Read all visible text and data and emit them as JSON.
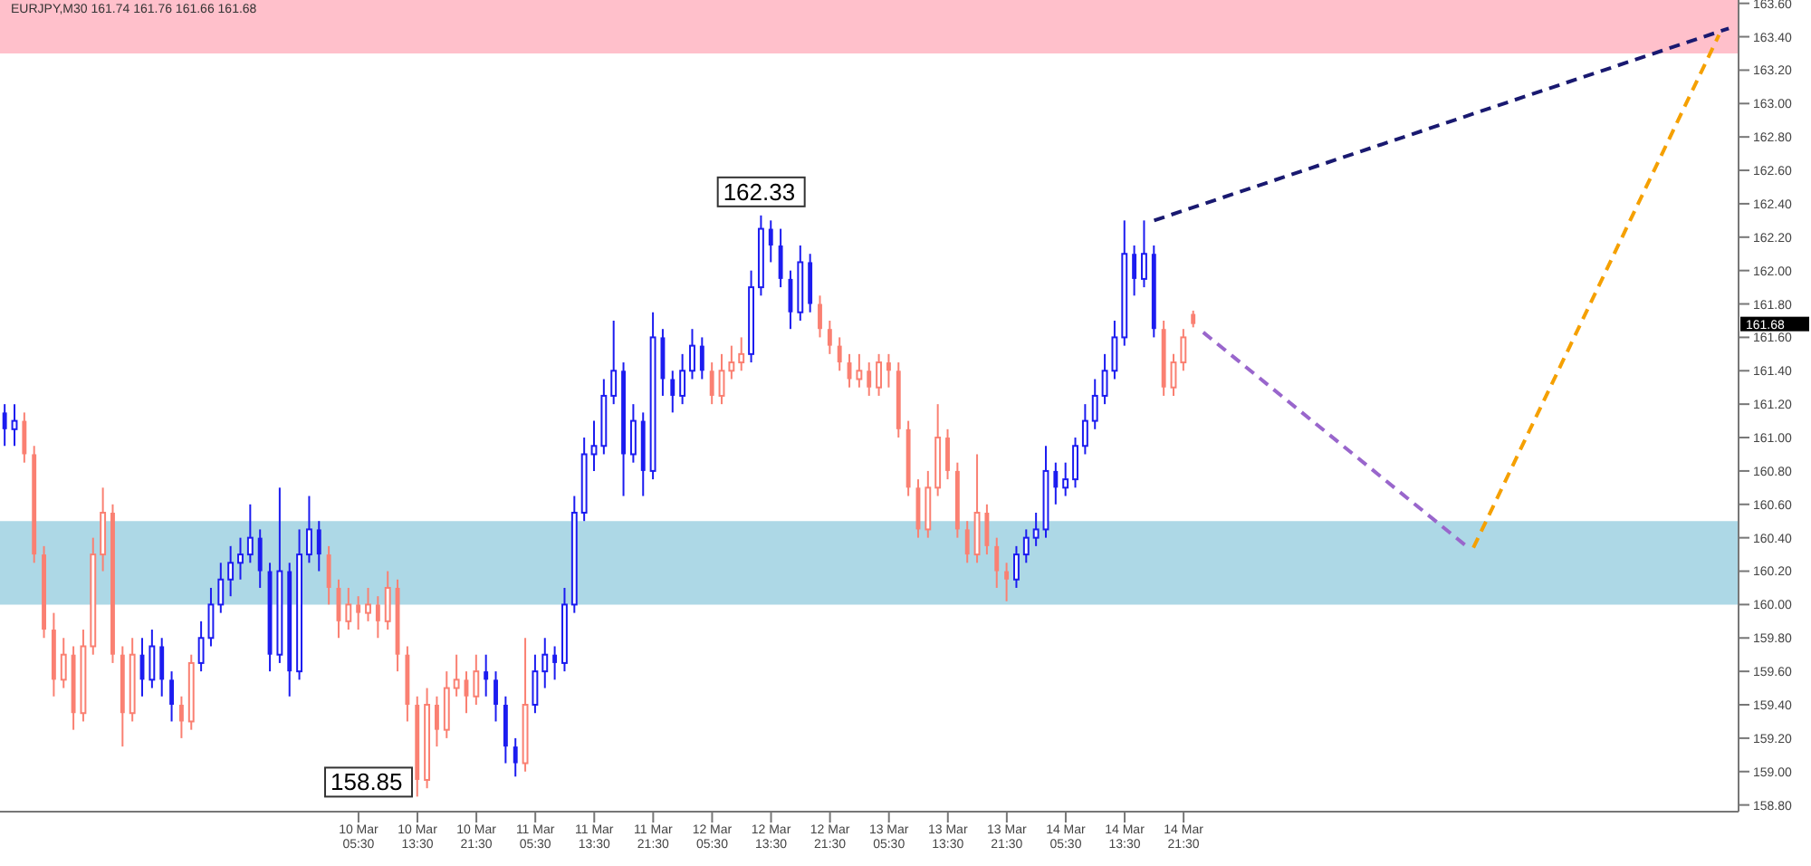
{
  "chart_data": {
    "type": "candlestick",
    "title": "EURJPY,M30 161.74 161.76 161.66 161.68",
    "x": [
      "--03-08T05:30",
      "--03-08T06:50",
      "--03-08T08:10",
      "--03-08T09:30",
      "--03-08T10:50",
      "--03-08T12:10",
      "--03-08T13:30",
      "--03-08T14:50",
      "--03-08T16:10",
      "--03-08T17:30",
      "--03-08T18:50",
      "--03-08T20:10",
      "--03-08T21:30",
      "--03-08T22:50",
      "--03-09T00:10",
      "--03-09T01:30",
      "--03-09T02:50",
      "--03-09T04:10",
      "--03-09T05:30",
      "--03-09T06:50",
      "--03-09T08:10",
      "--03-09T09:30",
      "--03-09T10:50",
      "--03-09T12:10",
      "--03-09T13:30",
      "--03-09T14:50",
      "--03-09T16:10",
      "--03-09T17:30",
      "--03-09T18:50",
      "--03-09T20:10",
      "--03-09T21:30",
      "--03-09T22:50",
      "--03-10T00:10",
      "--03-10T01:30",
      "--03-10T02:50",
      "--03-10T04:10",
      "--03-10T05:30",
      "--03-10T06:50",
      "--03-10T08:10",
      "--03-10T09:30",
      "--03-10T10:50",
      "--03-10T12:10",
      "--03-10T13:30",
      "--03-10T14:50",
      "--03-10T16:10",
      "--03-10T17:30",
      "--03-10T18:50",
      "--03-10T20:10",
      "--03-10T21:30",
      "--03-10T22:50",
      "--03-11T00:10",
      "--03-11T01:30",
      "--03-11T02:50",
      "--03-11T04:10",
      "--03-11T05:30",
      "--03-11T06:50",
      "--03-11T08:10",
      "--03-11T09:30",
      "--03-11T10:50",
      "--03-11T12:10",
      "--03-11T13:30",
      "--03-11T14:50",
      "--03-11T16:10",
      "--03-11T17:30",
      "--03-11T18:50",
      "--03-11T20:10",
      "--03-11T21:30",
      "--03-11T22:50",
      "--03-12T00:10",
      "--03-12T01:30",
      "--03-12T02:50",
      "--03-12T04:10",
      "--03-12T05:30",
      "--03-12T06:50",
      "--03-12T08:10",
      "--03-12T09:30",
      "--03-12T10:50",
      "--03-12T12:10",
      "--03-12T13:30",
      "--03-12T14:50",
      "--03-12T16:10",
      "--03-12T17:30",
      "--03-12T18:50",
      "--03-12T20:10",
      "--03-12T21:30",
      "--03-12T22:50",
      "--03-13T00:10",
      "--03-13T01:30",
      "--03-13T02:50",
      "--03-13T04:10",
      "--03-13T05:30",
      "--03-13T06:50",
      "--03-13T08:10",
      "--03-13T09:30",
      "--03-13T10:50",
      "--03-13T12:10",
      "--03-13T13:30",
      "--03-13T14:50",
      "--03-13T16:10",
      "--03-13T17:30",
      "--03-13T18:50",
      "--03-13T20:10",
      "--03-13T21:30",
      "--03-13T22:50",
      "--03-14T00:10",
      "--03-14T01:30",
      "--03-14T02:50",
      "--03-14T04:10",
      "--03-14T05:30",
      "--03-14T06:50",
      "--03-14T08:10",
      "--03-14T09:30",
      "--03-14T10:50",
      "--03-14T12:10",
      "--03-14T13:30",
      "--03-14T14:50",
      "--03-14T16:10",
      "--03-14T17:30",
      "--03-14T18:50",
      "--03-14T20:10",
      "--03-14T21:30",
      "--03-14T22:50"
    ],
    "ohlc": [
      [
        161.15,
        161.2,
        160.95,
        161.05
      ],
      [
        161.05,
        161.2,
        160.95,
        161.1
      ],
      [
        161.1,
        161.15,
        160.85,
        160.9
      ],
      [
        160.9,
        160.95,
        160.25,
        160.3
      ],
      [
        160.3,
        160.35,
        159.8,
        159.85
      ],
      [
        159.85,
        159.95,
        159.45,
        159.55
      ],
      [
        159.55,
        159.8,
        159.5,
        159.7
      ],
      [
        159.7,
        159.75,
        159.25,
        159.35
      ],
      [
        159.35,
        159.85,
        159.3,
        159.75
      ],
      [
        159.75,
        160.4,
        159.7,
        160.3
      ],
      [
        160.3,
        160.7,
        160.2,
        160.55
      ],
      [
        160.55,
        160.6,
        159.65,
        159.7
      ],
      [
        159.7,
        159.75,
        159.15,
        159.35
      ],
      [
        159.35,
        159.8,
        159.3,
        159.7
      ],
      [
        159.7,
        159.8,
        159.45,
        159.55
      ],
      [
        159.55,
        159.85,
        159.5,
        159.75
      ],
      [
        159.75,
        159.8,
        159.45,
        159.55
      ],
      [
        159.55,
        159.6,
        159.3,
        159.4
      ],
      [
        159.4,
        159.45,
        159.2,
        159.3
      ],
      [
        159.3,
        159.7,
        159.25,
        159.65
      ],
      [
        159.65,
        159.9,
        159.6,
        159.8
      ],
      [
        159.8,
        160.1,
        159.75,
        160.0
      ],
      [
        160.0,
        160.25,
        159.95,
        160.15
      ],
      [
        160.15,
        160.35,
        160.05,
        160.25
      ],
      [
        160.25,
        160.4,
        160.15,
        160.3
      ],
      [
        160.3,
        160.6,
        160.25,
        160.4
      ],
      [
        160.4,
        160.45,
        160.1,
        160.2
      ],
      [
        160.2,
        160.25,
        159.6,
        159.7
      ],
      [
        159.7,
        160.7,
        159.65,
        160.2
      ],
      [
        160.2,
        160.25,
        159.45,
        159.6
      ],
      [
        159.6,
        160.45,
        159.55,
        160.3
      ],
      [
        160.3,
        160.65,
        160.25,
        160.45
      ],
      [
        160.45,
        160.5,
        160.2,
        160.3
      ],
      [
        160.3,
        160.35,
        160.0,
        160.1
      ],
      [
        160.1,
        160.15,
        159.8,
        159.9
      ],
      [
        159.9,
        160.1,
        159.85,
        160.0
      ],
      [
        160.0,
        160.05,
        159.85,
        159.95
      ],
      [
        159.95,
        160.1,
        159.9,
        160.0
      ],
      [
        160.0,
        160.05,
        159.8,
        159.9
      ],
      [
        159.9,
        160.2,
        159.85,
        160.1
      ],
      [
        160.1,
        160.15,
        159.6,
        159.7
      ],
      [
        159.7,
        159.75,
        159.3,
        159.4
      ],
      [
        159.4,
        159.45,
        158.85,
        158.95
      ],
      [
        158.95,
        159.5,
        158.9,
        159.4
      ],
      [
        159.4,
        159.45,
        159.15,
        159.25
      ],
      [
        159.25,
        159.6,
        159.2,
        159.5
      ],
      [
        159.5,
        159.7,
        159.45,
        159.55
      ],
      [
        159.55,
        159.6,
        159.35,
        159.45
      ],
      [
        159.45,
        159.7,
        159.4,
        159.6
      ],
      [
        159.6,
        159.7,
        159.45,
        159.55
      ],
      [
        159.55,
        159.6,
        159.3,
        159.4
      ],
      [
        159.4,
        159.45,
        159.05,
        159.15
      ],
      [
        159.15,
        159.2,
        158.97,
        159.05
      ],
      [
        159.05,
        159.8,
        159.0,
        159.4
      ],
      [
        159.4,
        159.7,
        159.35,
        159.6
      ],
      [
        159.6,
        159.8,
        159.5,
        159.7
      ],
      [
        159.7,
        159.75,
        159.55,
        159.65
      ],
      [
        159.65,
        160.1,
        159.6,
        160.0
      ],
      [
        160.0,
        160.65,
        159.95,
        160.55
      ],
      [
        160.55,
        161.0,
        160.5,
        160.9
      ],
      [
        160.9,
        161.1,
        160.8,
        160.95
      ],
      [
        160.95,
        161.35,
        160.9,
        161.25
      ],
      [
        161.25,
        161.7,
        161.2,
        161.4
      ],
      [
        161.4,
        161.45,
        160.65,
        160.9
      ],
      [
        160.9,
        161.2,
        160.85,
        161.1
      ],
      [
        161.1,
        161.15,
        160.65,
        160.8
      ],
      [
        160.8,
        161.75,
        160.75,
        161.6
      ],
      [
        161.6,
        161.65,
        161.25,
        161.35
      ],
      [
        161.35,
        161.4,
        161.15,
        161.25
      ],
      [
        161.25,
        161.5,
        161.2,
        161.4
      ],
      [
        161.4,
        161.65,
        161.35,
        161.55
      ],
      [
        161.55,
        161.6,
        161.35,
        161.4
      ],
      [
        161.4,
        161.45,
        161.2,
        161.25
      ],
      [
        161.25,
        161.5,
        161.2,
        161.4
      ],
      [
        161.4,
        161.55,
        161.35,
        161.45
      ],
      [
        161.45,
        161.6,
        161.4,
        161.5
      ],
      [
        161.5,
        162.0,
        161.45,
        161.9
      ],
      [
        161.9,
        162.33,
        161.85,
        162.25
      ],
      [
        162.25,
        162.3,
        162.05,
        162.15
      ],
      [
        162.15,
        162.25,
        161.9,
        161.95
      ],
      [
        161.95,
        162.0,
        161.65,
        161.75
      ],
      [
        161.75,
        162.15,
        161.7,
        162.05
      ],
      [
        162.05,
        162.1,
        161.75,
        161.8
      ],
      [
        161.8,
        161.85,
        161.6,
        161.65
      ],
      [
        161.65,
        161.7,
        161.5,
        161.55
      ],
      [
        161.55,
        161.6,
        161.4,
        161.45
      ],
      [
        161.45,
        161.5,
        161.3,
        161.35
      ],
      [
        161.35,
        161.5,
        161.3,
        161.4
      ],
      [
        161.4,
        161.45,
        161.25,
        161.3
      ],
      [
        161.3,
        161.5,
        161.25,
        161.45
      ],
      [
        161.45,
        161.5,
        161.3,
        161.4
      ],
      [
        161.4,
        161.45,
        161.0,
        161.05
      ],
      [
        161.05,
        161.1,
        160.65,
        160.7
      ],
      [
        160.7,
        160.75,
        160.4,
        160.45
      ],
      [
        160.45,
        160.8,
        160.4,
        160.7
      ],
      [
        160.7,
        161.2,
        160.65,
        161.0
      ],
      [
        161.0,
        161.05,
        160.75,
        160.8
      ],
      [
        160.8,
        160.85,
        160.4,
        160.45
      ],
      [
        160.45,
        160.5,
        160.25,
        160.3
      ],
      [
        160.3,
        160.9,
        160.25,
        160.55
      ],
      [
        160.55,
        160.6,
        160.3,
        160.35
      ],
      [
        160.35,
        160.4,
        160.1,
        160.2
      ],
      [
        160.2,
        160.25,
        160.02,
        160.15
      ],
      [
        160.15,
        160.35,
        160.1,
        160.3
      ],
      [
        160.3,
        160.45,
        160.25,
        160.4
      ],
      [
        160.4,
        160.55,
        160.35,
        160.45
      ],
      [
        160.45,
        160.95,
        160.4,
        160.8
      ],
      [
        160.8,
        160.85,
        160.6,
        160.7
      ],
      [
        160.7,
        160.85,
        160.65,
        160.75
      ],
      [
        160.75,
        161.0,
        160.7,
        160.95
      ],
      [
        160.95,
        161.2,
        160.9,
        161.1
      ],
      [
        161.1,
        161.35,
        161.05,
        161.25
      ],
      [
        161.25,
        161.5,
        161.2,
        161.4
      ],
      [
        161.4,
        161.7,
        161.35,
        161.6
      ],
      [
        161.6,
        162.3,
        161.55,
        162.1
      ],
      [
        162.1,
        162.15,
        161.85,
        161.95
      ],
      [
        161.95,
        162.3,
        161.9,
        162.1
      ],
      [
        162.1,
        162.15,
        161.6,
        161.65
      ],
      [
        161.65,
        161.7,
        161.25,
        161.3
      ],
      [
        161.3,
        161.5,
        161.25,
        161.45
      ],
      [
        161.45,
        161.65,
        161.4,
        161.6
      ],
      [
        161.74,
        161.76,
        161.66,
        161.68
      ]
    ],
    "colors": [
      "#1c1cf0",
      "#1c1cf0",
      "#fa8072",
      "#fa8072",
      "#fa8072",
      "#fa8072",
      "#fa8072",
      "#fa8072",
      "#fa8072",
      "#fa8072",
      "#fa8072",
      "#fa8072",
      "#fa8072",
      "#fa8072",
      "#1c1cf0",
      "#1c1cf0",
      "#1c1cf0",
      "#1c1cf0",
      "#fa8072",
      "#fa8072",
      "#1c1cf0",
      "#1c1cf0",
      "#1c1cf0",
      "#1c1cf0",
      "#1c1cf0",
      "#1c1cf0",
      "#1c1cf0",
      "#1c1cf0",
      "#1c1cf0",
      "#1c1cf0",
      "#1c1cf0",
      "#1c1cf0",
      "#1c1cf0",
      "#fa8072",
      "#fa8072",
      "#fa8072",
      "#fa8072",
      "#fa8072",
      "#fa8072",
      "#fa8072",
      "#fa8072",
      "#fa8072",
      "#fa8072",
      "#fa8072",
      "#fa8072",
      "#fa8072",
      "#fa8072",
      "#fa8072",
      "#fa8072",
      "#1c1cf0",
      "#1c1cf0",
      "#1c1cf0",
      "#1c1cf0",
      "#fa8072",
      "#1c1cf0",
      "#1c1cf0",
      "#1c1cf0",
      "#1c1cf0",
      "#1c1cf0",
      "#1c1cf0",
      "#1c1cf0",
      "#1c1cf0",
      "#1c1cf0",
      "#1c1cf0",
      "#1c1cf0",
      "#1c1cf0",
      "#1c1cf0",
      "#1c1cf0",
      "#1c1cf0",
      "#1c1cf0",
      "#1c1cf0",
      "#1c1cf0",
      "#fa8072",
      "#fa8072",
      "#fa8072",
      "#fa8072",
      "#1c1cf0",
      "#1c1cf0",
      "#1c1cf0",
      "#1c1cf0",
      "#1c1cf0",
      "#1c1cf0",
      "#1c1cf0",
      "#fa8072",
      "#fa8072",
      "#fa8072",
      "#fa8072",
      "#fa8072",
      "#fa8072",
      "#fa8072",
      "#fa8072",
      "#fa8072",
      "#fa8072",
      "#fa8072",
      "#fa8072",
      "#fa8072",
      "#fa8072",
      "#fa8072",
      "#fa8072",
      "#fa8072",
      "#fa8072",
      "#fa8072",
      "#fa8072",
      "#1c1cf0",
      "#1c1cf0",
      "#1c1cf0",
      "#1c1cf0",
      "#1c1cf0",
      "#1c1cf0",
      "#1c1cf0",
      "#1c1cf0",
      "#1c1cf0",
      "#1c1cf0",
      "#1c1cf0",
      "#1c1cf0",
      "#1c1cf0",
      "#1c1cf0",
      "#1c1cf0",
      "#fa8072",
      "#fa8072",
      "#fa8072",
      "#fa8072"
    ],
    "series": [
      {
        "type": "line",
        "color": "#191970",
        "line_style": "dashed",
        "x": [
          "--03-14T17:30",
          "--03-17T23:30"
        ],
        "values": [
          162.3,
          163.45
        ]
      },
      {
        "type": "line",
        "color": "#9966cc",
        "line_style": "dashed",
        "x": [
          "--03-15T00:10",
          "--03-16T12:10"
        ],
        "values": [
          161.63,
          160.34
        ]
      },
      {
        "type": "line",
        "color": "#f5a000",
        "line_style": "dashed",
        "x": [
          "--03-16T12:50",
          "--03-17T22:10"
        ],
        "values": [
          160.34,
          163.41
        ]
      }
    ],
    "xlim": [
      "--03-08T04:50",
      "--03-18T00:50"
    ],
    "xticks": [
      {
        "value": "--03-10T05:30",
        "label": "10 Mar 05:30"
      },
      {
        "value": "--03-10T13:30",
        "label": "10 Mar 13:30"
      },
      {
        "value": "--03-10T21:30",
        "label": "10 Mar 21:30"
      },
      {
        "value": "--03-11T05:30",
        "label": "11 Mar 05:30"
      },
      {
        "value": "--03-11T13:30",
        "label": "11 Mar 13:30"
      },
      {
        "value": "--03-11T21:30",
        "label": "11 Mar 21:30"
      },
      {
        "value": "--03-12T05:30",
        "label": "12 Mar 05:30"
      },
      {
        "value": "--03-12T13:30",
        "label": "12 Mar 13:30"
      },
      {
        "value": "--03-12T21:30",
        "label": "12 Mar 21:30"
      },
      {
        "value": "--03-13T05:30",
        "label": "13 Mar 05:30"
      },
      {
        "value": "--03-13T13:30",
        "label": "13 Mar 13:30"
      },
      {
        "value": "--03-13T21:30",
        "label": "13 Mar 21:30"
      },
      {
        "value": "--03-14T05:30",
        "label": "14 Mar 05:30"
      },
      {
        "value": "--03-14T13:30",
        "label": "14 Mar 13:30"
      },
      {
        "value": "--03-14T21:30",
        "label": "14 Mar 21:30"
      }
    ],
    "ylim": [
      158.76,
      163.62
    ],
    "yticks": [
      {
        "value": 158.8,
        "label": "158.80"
      },
      {
        "value": 159,
        "label": "159.00"
      },
      {
        "value": 159.2,
        "label": "159.20"
      },
      {
        "value": 159.4,
        "label": "159.40"
      },
      {
        "value": 159.6,
        "label": "159.60"
      },
      {
        "value": 159.8,
        "label": "159.80"
      },
      {
        "value": 160,
        "label": "160.00"
      },
      {
        "value": 160.2,
        "label": "160.20"
      },
      {
        "value": 160.4,
        "label": "160.40"
      },
      {
        "value": 160.6,
        "label": "160.60"
      },
      {
        "value": 160.8,
        "label": "160.80"
      },
      {
        "value": 161,
        "label": "161.00"
      },
      {
        "value": 161.2,
        "label": "161.20"
      },
      {
        "value": 161.4,
        "label": "161.40"
      },
      {
        "value": 161.6,
        "label": "161.60"
      },
      {
        "value": 161.8,
        "label": "161.80"
      },
      {
        "value": 162,
        "label": "162.00"
      },
      {
        "value": 162.2,
        "label": "162.20"
      },
      {
        "value": 162.4,
        "label": "162.40"
      },
      {
        "value": 162.6,
        "label": "162.60"
      },
      {
        "value": 162.8,
        "label": "162.80"
      },
      {
        "value": 163,
        "label": "163.00"
      },
      {
        "value": 163.2,
        "label": "163.20"
      },
      {
        "value": 163.4,
        "label": "163.40"
      },
      {
        "value": 163.6,
        "label": "163.60"
      }
    ],
    "bands": [
      {
        "axis": "y",
        "from": 160.0,
        "to": 160.5,
        "color": "#add8e6"
      },
      {
        "axis": "y",
        "from": 163.3,
        "to": 163.62,
        "color": "#ffc0cb"
      }
    ],
    "annotations": [
      {
        "text": "162.33",
        "x": "--03-12T12:10",
        "y": 162.33
      },
      {
        "text": "158.85",
        "x": "--03-10T13:30",
        "y": 158.85
      },
      "161.68"
    ]
  }
}
